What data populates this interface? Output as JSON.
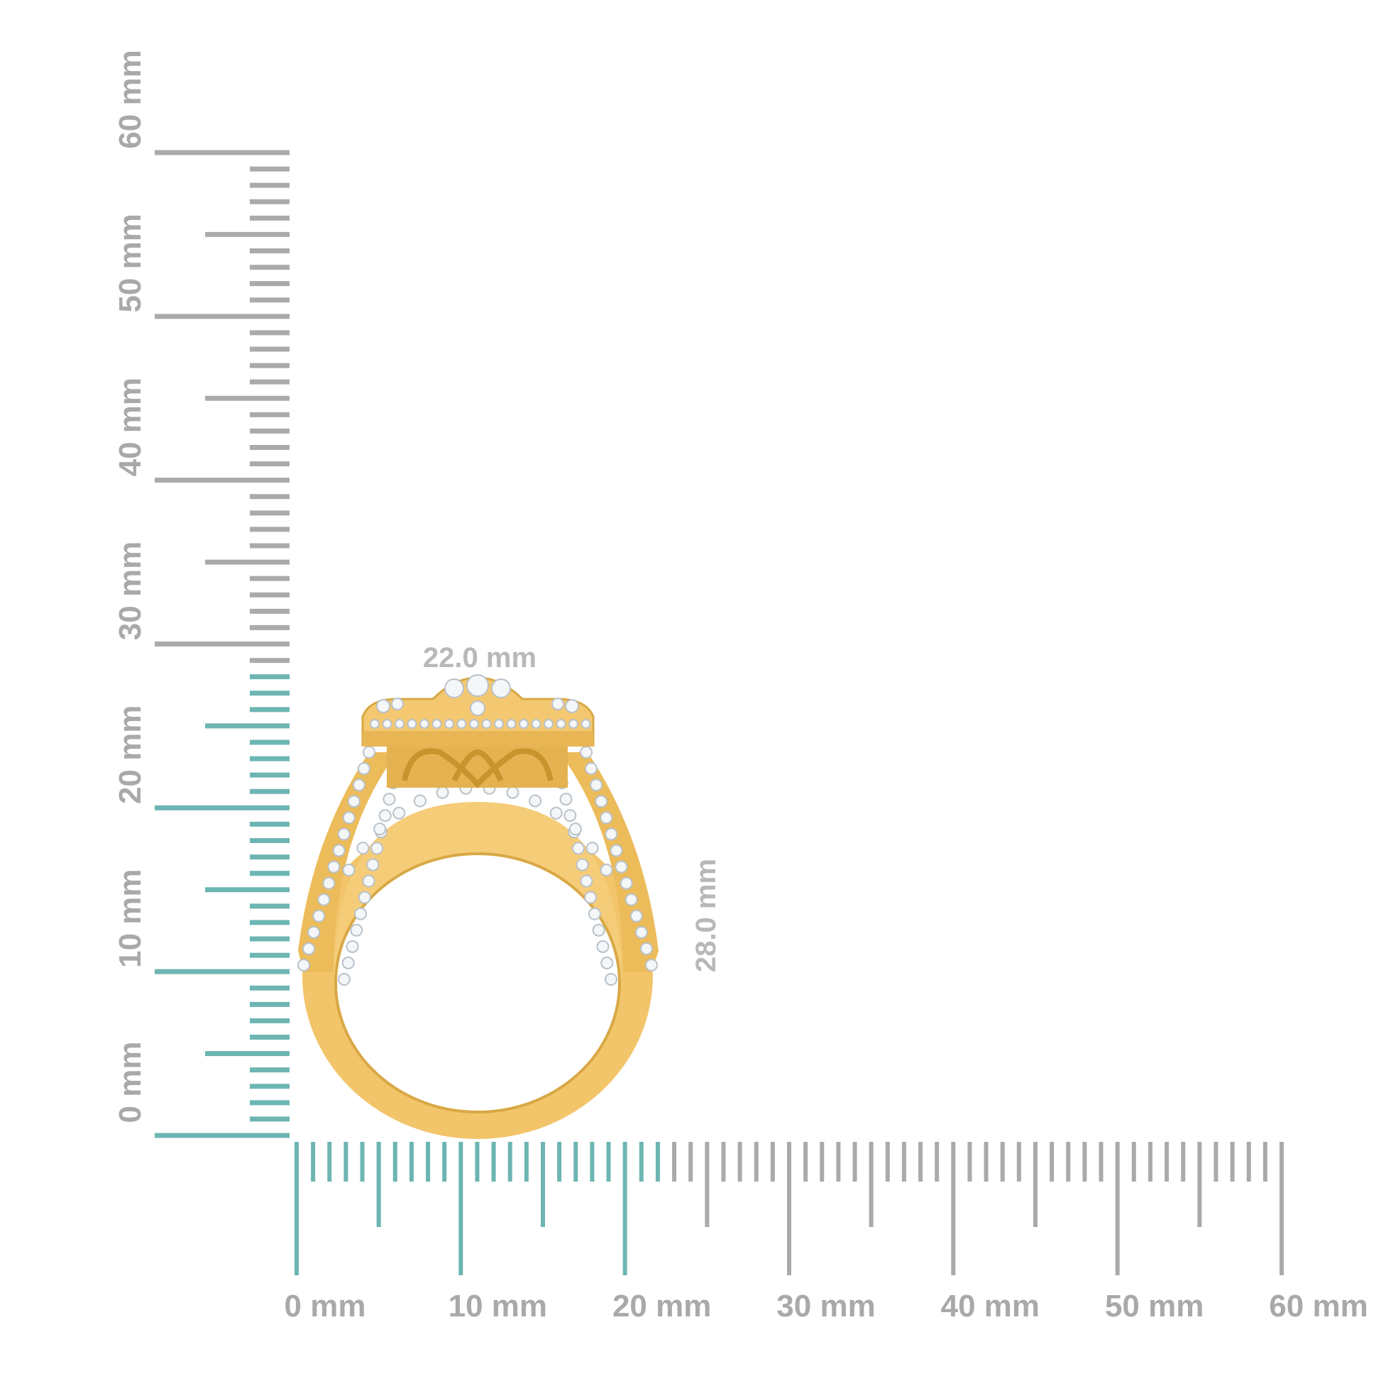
{
  "product": "ring",
  "colors": {
    "ruler_highlight": "#6db5b2",
    "ruler_default": "#aaaaaa",
    "metal": "#f2c56a",
    "metal_shadow": "#d9a845",
    "stone": "#f4f6f8"
  },
  "horizontal_ruler": {
    "labels": [
      "0 mm",
      "10 mm",
      "20 mm",
      "30 mm",
      "40 mm",
      "50 mm",
      "60 mm"
    ],
    "range_mm": [
      0,
      60
    ],
    "highlighted_to_mm": 22
  },
  "vertical_ruler": {
    "labels": [
      "0 mm",
      "10 mm",
      "20 mm",
      "30 mm",
      "40 mm",
      "50 mm",
      "60 mm"
    ],
    "range_mm": [
      0,
      60
    ],
    "highlighted_to_mm": 28
  },
  "dimensions": {
    "width": "22.0 mm",
    "height": "28.0 mm"
  }
}
